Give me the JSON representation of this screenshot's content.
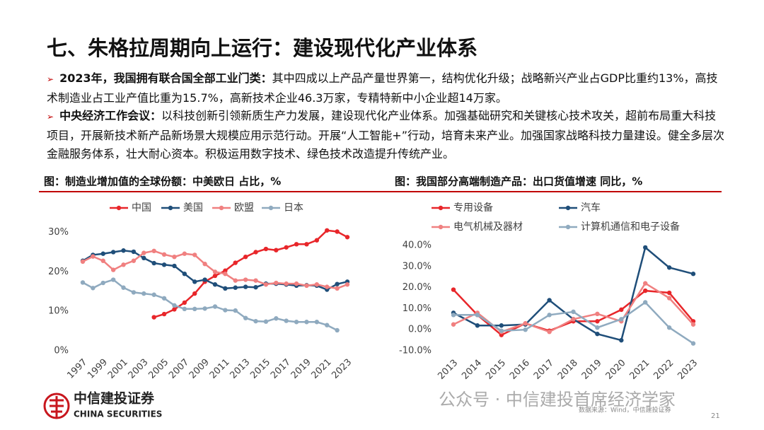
{
  "header": {
    "title": "七、朱格拉周期向上运行：建设现代化产业体系"
  },
  "bullets": [
    {
      "lead": "2023年，我国拥有联合国全部工业门类：",
      "text": "其中四成以上产品产量世界第一，结构优化升级；战略新兴产业占GDP比重约13%，高技术制造业占工业产值比重为15.7%，高新技术企业46.3万家，专精特新中小企业超14万家。"
    },
    {
      "lead": "中央经济工作会议：",
      "text": "以科技创新引领新质生产力发展，建设现代化产业体系。加强基础研究和关键核心技术攻关，超前布局重大科技项目，开展新技术新产品新场景大规模应用示范行动。开展“人工智能+”行动，培育未来产业。加强国家战略科技力量建设。健全多层次金融服务体系，壮大耐心资本。积极运用数字技术、绿色技术改造提升传统产业。"
    }
  ],
  "chart_data": [
    {
      "type": "line",
      "title": "图：制造业增加值的全球份额：中美欧日 占比，%",
      "legend": "top",
      "grid": false,
      "x": [
        1997,
        1998,
        1999,
        2000,
        2001,
        2002,
        2003,
        2004,
        2005,
        2006,
        2007,
        2008,
        2009,
        2010,
        2011,
        2012,
        2013,
        2014,
        2015,
        2016,
        2017,
        2018,
        2019,
        2020,
        2021,
        2022,
        2023
      ],
      "xlim": [
        1997,
        2023
      ],
      "xticks": [
        1997,
        1999,
        2001,
        2003,
        2005,
        2007,
        2009,
        2011,
        2013,
        2015,
        2017,
        2019,
        2021,
        2023
      ],
      "ylim": [
        0,
        31
      ],
      "yticks": [
        {
          "value": 0,
          "label": "0%"
        },
        {
          "value": 10,
          "label": "10%"
        },
        {
          "value": 20,
          "label": "20%"
        },
        {
          "value": 30,
          "label": "30%"
        }
      ],
      "series": [
        {
          "name": "中国",
          "color": "#e8262a",
          "values": [
            null,
            null,
            null,
            null,
            null,
            null,
            null,
            8.5,
            9.3,
            10.5,
            12.2,
            14.5,
            17.5,
            19,
            20.3,
            22.3,
            23.8,
            25,
            25.8,
            25.5,
            26.2,
            27,
            27,
            28,
            30.5,
            30.2,
            28.8
          ]
        },
        {
          "name": "美国",
          "color": "#1f4e79",
          "values": [
            22.8,
            24.3,
            24.6,
            25,
            25.4,
            25.1,
            23.5,
            22.2,
            21.8,
            21.5,
            19.5,
            17.5,
            18,
            16.8,
            15.8,
            16,
            16.2,
            16.1,
            17,
            17,
            16.8,
            16.5,
            16.6,
            16.5,
            15.5,
            16.9,
            17.5
          ]
        },
        {
          "name": "欧盟",
          "color": "#f08080",
          "values": [
            22.6,
            23.9,
            22.8,
            20.5,
            21.8,
            22.8,
            24.8,
            25.3,
            24.4,
            23.8,
            24.6,
            24.3,
            22,
            20,
            19.5,
            17.8,
            18,
            17.8,
            16.8,
            17.2,
            17,
            17,
            16.5,
            16.8,
            16.2,
            15.8,
            16.8
          ]
        },
        {
          "name": "日本",
          "color": "#8faabf",
          "values": [
            17.3,
            15.9,
            17.2,
            18,
            16,
            14.8,
            14.5,
            14.2,
            13.3,
            11.5,
            10.6,
            10.6,
            10.7,
            11.2,
            10.3,
            10.2,
            8.3,
            7.5,
            7.4,
            8.2,
            7.6,
            7.3,
            7.3,
            7.3,
            6.5,
            5.2,
            null
          ]
        }
      ]
    },
    {
      "type": "line",
      "title": "图：我国部分高端制造产品：出口货值增速 同比，%",
      "legend": "top",
      "grid": false,
      "categories": [
        "2013",
        "2014",
        "2015",
        "2016",
        "2017",
        "2018",
        "2019",
        "2020",
        "2021",
        "2022",
        "2023"
      ],
      "ylim": [
        -11,
        42
      ],
      "yticks": [
        {
          "value": -10,
          "label": "-10.0%"
        },
        {
          "value": 0,
          "label": "0.0%"
        },
        {
          "value": 10,
          "label": "10.0%"
        },
        {
          "value": 20,
          "label": "20.0%"
        },
        {
          "value": 30,
          "label": "30.0%"
        },
        {
          "value": 40,
          "label": "40.0%"
        }
      ],
      "series": [
        {
          "name": "专用设备",
          "color": "#e8262a",
          "values": [
            19,
            7,
            -2.5,
            3,
            -0.5,
            4,
            4,
            9.5,
            18.5,
            17.5,
            4
          ]
        },
        {
          "name": "汽车",
          "color": "#1f4e79",
          "values": [
            8,
            2,
            2,
            2.5,
            14,
            5,
            -2,
            -5,
            39,
            29.5,
            26.5
          ]
        },
        {
          "name": "电气机械及器材",
          "color": "#f08080",
          "values": [
            2.5,
            8,
            -1,
            3,
            -1,
            5,
            7.5,
            4,
            22,
            15,
            2.5
          ]
        },
        {
          "name": "计算机通信和电子设备",
          "color": "#8faabf",
          "values": [
            7,
            7,
            -0.5,
            0,
            7,
            8.5,
            1,
            5,
            13,
            1,
            -6.5
          ]
        }
      ]
    }
  ],
  "footer": {
    "logo_cn": "中信建投证券",
    "logo_en": "CHINA SECURITIES",
    "source": "数据来源：Wind，中信建投证券",
    "page": "21",
    "watermark": "公众号 · 中信建投首席经济学家"
  }
}
